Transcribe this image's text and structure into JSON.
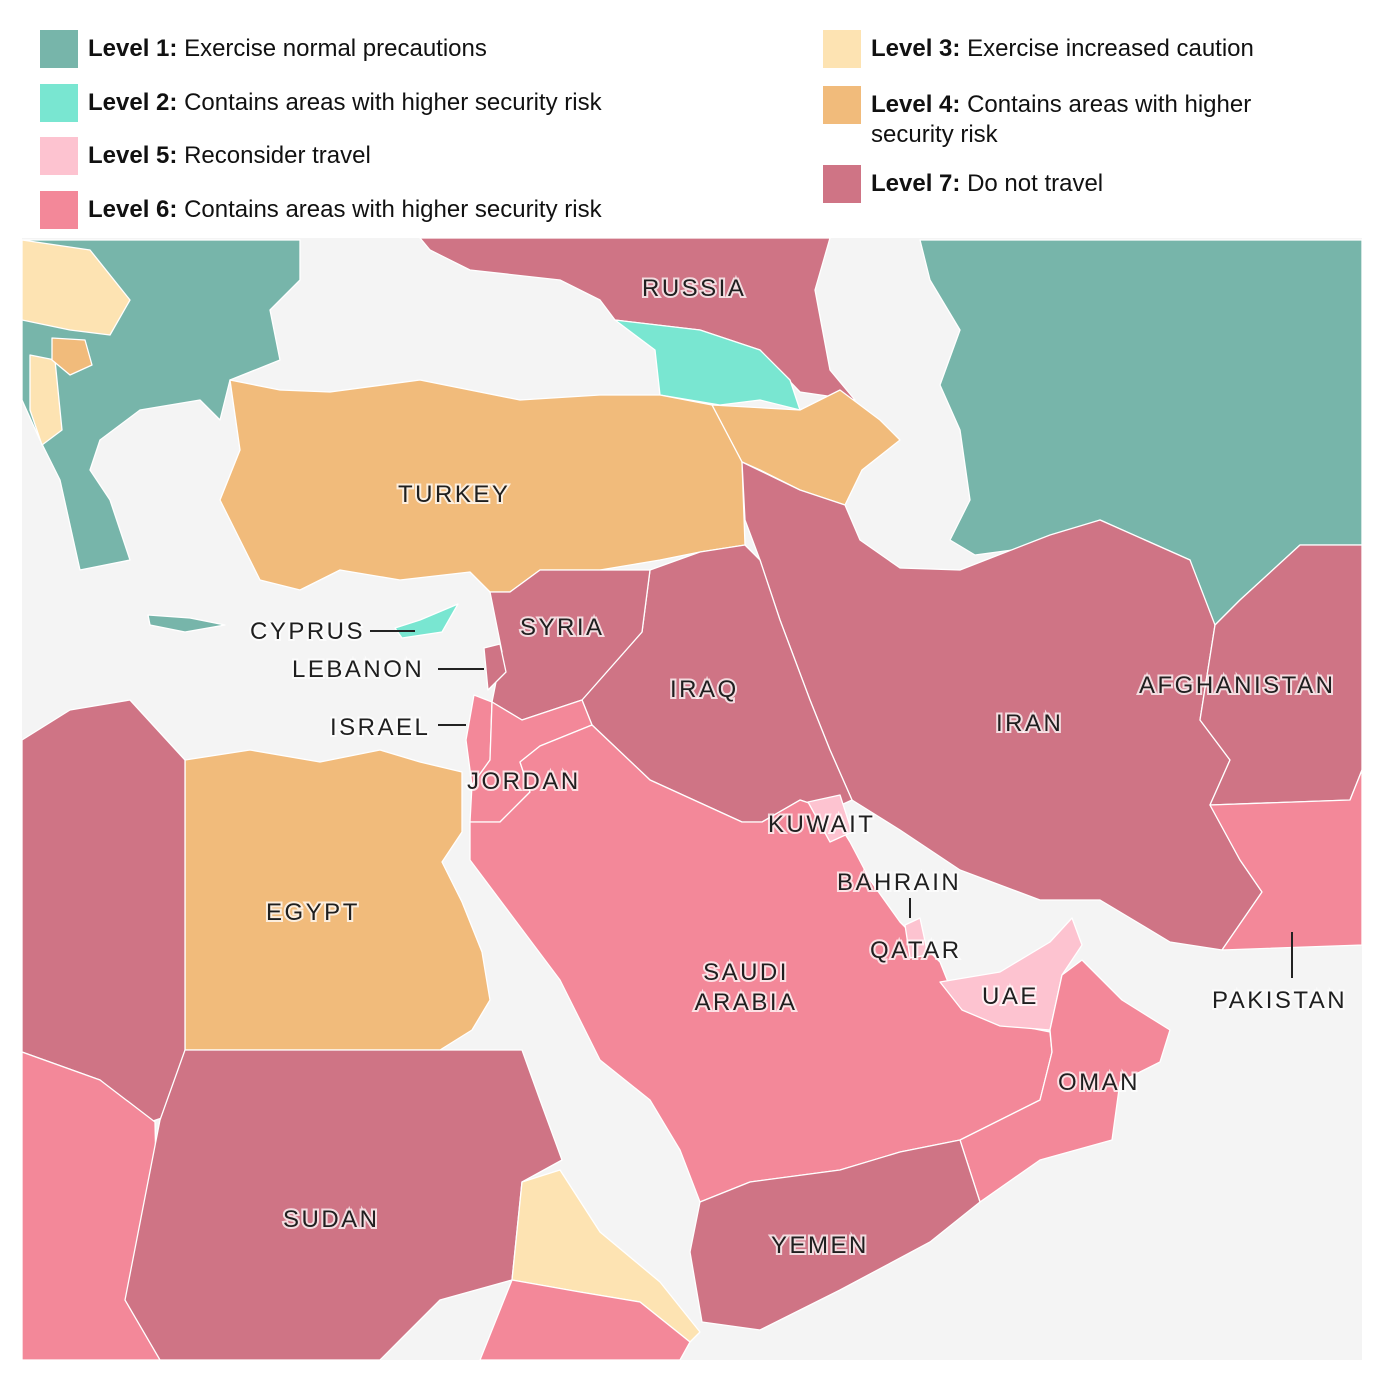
{
  "legend": [
    {
      "level": "Level 1:",
      "text": "Exercise normal precautions",
      "color": "#77b5aa"
    },
    {
      "level": "Level 2:",
      "text": "Contains areas with higher security risk",
      "color": "#79e6d1"
    },
    {
      "level": "Level 5:",
      "text": "Reconsider travel",
      "color": "#fdc3d0"
    },
    {
      "level": "Level 6:",
      "text": "Contains areas with higher security risk",
      "color": "#f38899"
    },
    {
      "level": "Level 3:",
      "text": "Exercise increased caution",
      "color": "#fde3b2"
    },
    {
      "level": "Level 4:",
      "text": "Contains areas with higher security risk",
      "color": "#f1bb7b"
    },
    {
      "level": "Level 7:",
      "text": "Do not travel",
      "color": "#cf7485"
    }
  ],
  "map": {
    "sea_color": "#f4f4f4",
    "countries": [
      {
        "name": "RUSSIA",
        "level": 7
      },
      {
        "name": "TURKEY",
        "level": 4
      },
      {
        "name": "CYPRUS",
        "level": 2
      },
      {
        "name": "LEBANON",
        "level": 7
      },
      {
        "name": "ISRAEL",
        "level": 6
      },
      {
        "name": "SYRIA",
        "level": 7
      },
      {
        "name": "IRAQ",
        "level": 7
      },
      {
        "name": "IRAN",
        "level": 7
      },
      {
        "name": "AFGHANISTAN",
        "level": 7
      },
      {
        "name": "JORDAN",
        "level": 6
      },
      {
        "name": "KUWAIT",
        "level": 5
      },
      {
        "name": "BAHRAIN",
        "level": 6
      },
      {
        "name": "QATAR",
        "level": 5
      },
      {
        "name": "UAE",
        "level": 5
      },
      {
        "name": "PAKISTAN",
        "level": 6
      },
      {
        "name": "EGYPT",
        "level": 4
      },
      {
        "name": "SAUDI ARABIA",
        "level": 6
      },
      {
        "name": "OMAN",
        "level": 6
      },
      {
        "name": "SUDAN",
        "level": 7
      },
      {
        "name": "YEMEN",
        "level": 7
      }
    ]
  }
}
